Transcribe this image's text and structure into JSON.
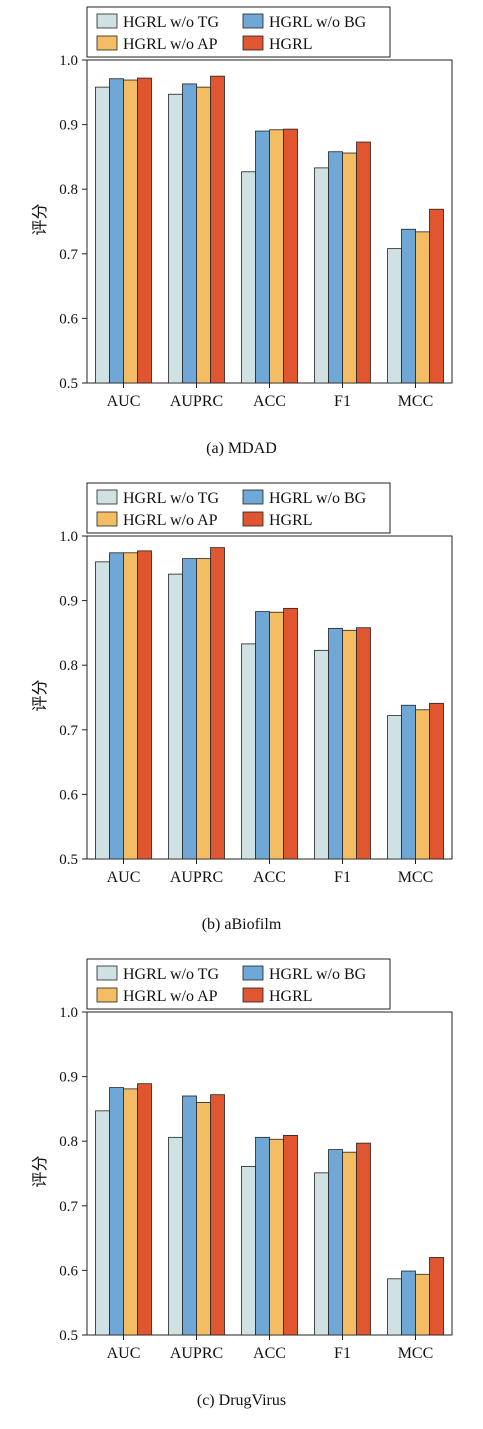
{
  "colors": {
    "HGRL w/o TG": "#cfe1e3",
    "HGRL w/o BG": "#6fa8d6",
    "HGRL w/o AP": "#f5bd63",
    "HGRL": "#e05631"
  },
  "chart_data": [
    {
      "type": "bar",
      "caption": "(a) MDAD",
      "ylabel": "评分",
      "ylim": [
        0.5,
        1.0
      ],
      "yticks": [
        "0.5",
        "0.6",
        "0.7",
        "0.8",
        "0.9",
        "1.0"
      ],
      "legend_placement": "top-left",
      "categories": [
        "AUC",
        "AUPRC",
        "ACC",
        "F1",
        "MCC"
      ],
      "series": [
        {
          "name": "HGRL w/o TG",
          "values": [
            0.958,
            0.947,
            0.827,
            0.833,
            0.708
          ]
        },
        {
          "name": "HGRL w/o BG",
          "values": [
            0.971,
            0.963,
            0.89,
            0.858,
            0.738
          ]
        },
        {
          "name": "HGRL w/o AP",
          "values": [
            0.969,
            0.958,
            0.892,
            0.856,
            0.734
          ]
        },
        {
          "name": "HGRL",
          "values": [
            0.972,
            0.975,
            0.893,
            0.873,
            0.769
          ]
        }
      ]
    },
    {
      "type": "bar",
      "caption": "(b) aBiofilm",
      "ylabel": "评分",
      "ylim": [
        0.5,
        1.0
      ],
      "yticks": [
        "0.5",
        "0.6",
        "0.7",
        "0.8",
        "0.9",
        "1.0"
      ],
      "legend_placement": "top-left",
      "categories": [
        "AUC",
        "AUPRC",
        "ACC",
        "F1",
        "MCC"
      ],
      "series": [
        {
          "name": "HGRL w/o TG",
          "values": [
            0.96,
            0.941,
            0.833,
            0.823,
            0.722
          ]
        },
        {
          "name": "HGRL w/o BG",
          "values": [
            0.974,
            0.965,
            0.883,
            0.857,
            0.738
          ]
        },
        {
          "name": "HGRL w/o AP",
          "values": [
            0.974,
            0.965,
            0.882,
            0.854,
            0.731
          ]
        },
        {
          "name": "HGRL",
          "values": [
            0.977,
            0.982,
            0.888,
            0.858,
            0.741
          ]
        }
      ]
    },
    {
      "type": "bar",
      "caption": "(c) DrugVirus",
      "ylabel": "评分",
      "ylim": [
        0.5,
        1.0
      ],
      "yticks": [
        "0.5",
        "0.6",
        "0.7",
        "0.8",
        "0.9",
        "1.0"
      ],
      "legend_placement": "top-left",
      "categories": [
        "AUC",
        "AUPRC",
        "ACC",
        "F1",
        "MCC"
      ],
      "series": [
        {
          "name": "HGRL w/o TG",
          "values": [
            0.847,
            0.806,
            0.761,
            0.751,
            0.587
          ]
        },
        {
          "name": "HGRL w/o BG",
          "values": [
            0.883,
            0.87,
            0.806,
            0.787,
            0.599
          ]
        },
        {
          "name": "HGRL w/o AP",
          "values": [
            0.881,
            0.86,
            0.803,
            0.783,
            0.594
          ]
        },
        {
          "name": "HGRL",
          "values": [
            0.889,
            0.872,
            0.809,
            0.797,
            0.62
          ]
        }
      ]
    }
  ]
}
